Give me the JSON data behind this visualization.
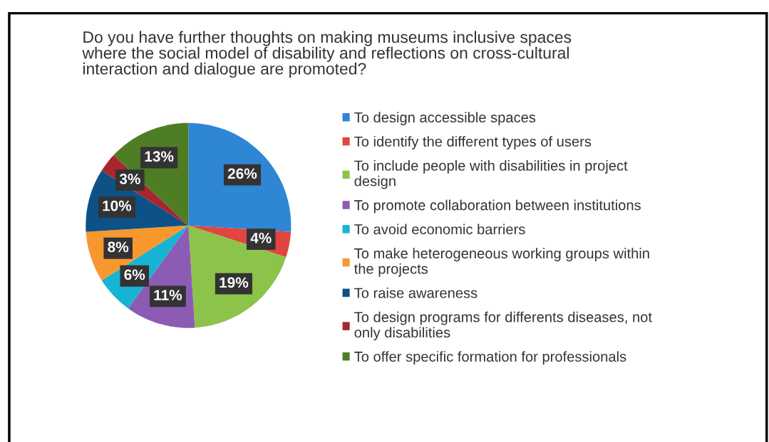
{
  "chart_data": {
    "type": "pie",
    "title": "Do you have further thoughts on making museums inclusive spaces\nwhere the social model of disability and reflections on cross-cultural\ninteraction and dialogue are promoted?",
    "categories": [
      "To design accessible spaces",
      "To identify the different types of users",
      "To include people with disabilities in project\ndesign",
      "To promote collaboration between institutions",
      "To avoid economic barriers",
      "To make heterogeneous working groups within\nthe projects",
      "To raise awareness",
      "To design programs for differents diseases, not\nonly disabilities",
      "To offer specific formation for professionals"
    ],
    "values": [
      26,
      4,
      19,
      11,
      6,
      8,
      10,
      3,
      13
    ],
    "colors": [
      "#2e86d4",
      "#e0453f",
      "#8cc34a",
      "#8c5cb5",
      "#17b3d3",
      "#f7982f",
      "#0e5186",
      "#a8262c",
      "#4f7d24"
    ],
    "value_labels": [
      "26%",
      "4%",
      "19%",
      "11%",
      "6%",
      "8%",
      "10%",
      "3%",
      "13%"
    ],
    "legend": "right"
  }
}
